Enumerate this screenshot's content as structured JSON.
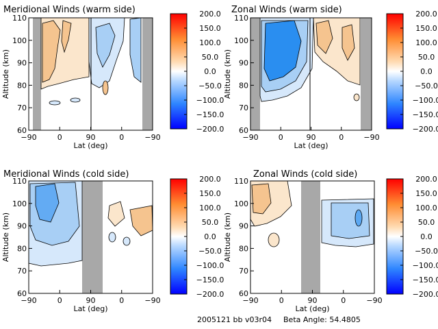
{
  "footer": {
    "date_version": "2005121 bb v03r04",
    "beta_label": "Beta Angle: 54.4805"
  },
  "colors": {
    "axis": "#000000",
    "gap": "#a8a8a8",
    "pos_light": "#fbe6cc",
    "pos_mid": "#f5c48f",
    "neg_light": "#d6e8fb",
    "neg_mid": "#a8cff5",
    "neg_dark": "#2a8ef0"
  },
  "colorbar": {
    "ticks": [
      "200.0",
      "150.0",
      "100.0",
      "50.0",
      "0.0",
      "−50.0",
      "−100.0",
      "−150.0",
      "−200.0"
    ],
    "range": [
      -200,
      200
    ]
  },
  "chart_data": [
    {
      "type": "heatmap",
      "title": "Meridional Winds (warm side)",
      "xlabel": "Lat (deg)",
      "ylabel": "Altitude (km)",
      "xticks": [
        "−90",
        "0",
        "90",
        "0",
        "−90"
      ],
      "yticks": [
        "60",
        "70",
        "80",
        "90",
        "100",
        "110"
      ],
      "ylim": [
        60,
        110
      ],
      "clim": [
        -200,
        200
      ]
    },
    {
      "type": "heatmap",
      "title": "Zonal Winds (warm side)",
      "xlabel": "Lat (deg)",
      "ylabel": "Altitude (km)",
      "xticks": [
        "−90",
        "0",
        "90",
        "0",
        "−90"
      ],
      "yticks": [
        "60",
        "70",
        "80",
        "90",
        "100",
        "110"
      ],
      "ylim": [
        60,
        110
      ],
      "clim": [
        -200,
        200
      ]
    },
    {
      "type": "heatmap",
      "title": "Meridional Winds (cold side)",
      "xlabel": "Lat (deg)",
      "ylabel": "Altitude (km)",
      "xticks": [
        "−90",
        "0",
        "90",
        "0",
        "−90"
      ],
      "yticks": [
        "60",
        "70",
        "80",
        "90",
        "100",
        "110"
      ],
      "ylim": [
        60,
        110
      ],
      "clim": [
        -200,
        200
      ]
    },
    {
      "type": "heatmap",
      "title": "Zonal Winds (cold side)",
      "xlabel": "Lat (deg)",
      "ylabel": "Altitude (km)",
      "xticks": [
        "−90",
        "0",
        "90",
        "0",
        "−90"
      ],
      "yticks": [
        "60",
        "70",
        "80",
        "90",
        "100",
        "110"
      ],
      "ylim": [
        60,
        110
      ],
      "clim": [
        -200,
        200
      ]
    }
  ]
}
